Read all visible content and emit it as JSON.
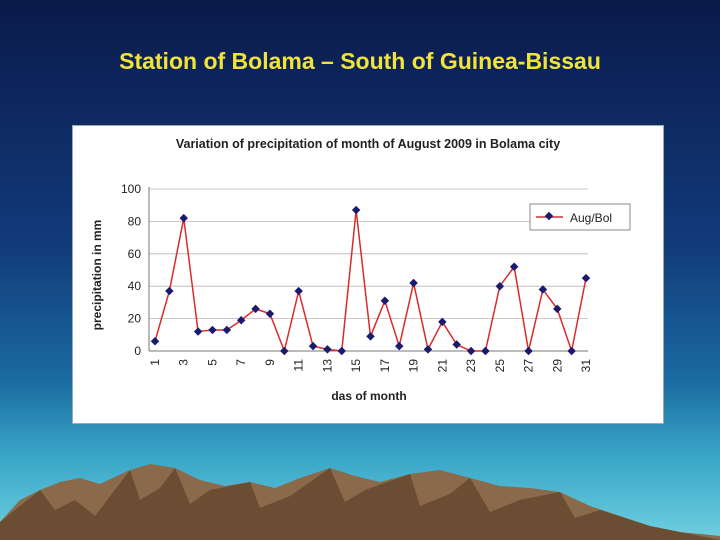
{
  "slide": {
    "title": "Station of Bolama – South of Guinea-Bissau"
  },
  "colors": {
    "title": "#f2e33a",
    "line": "#d92b2b",
    "marker": "#1a1a6e"
  },
  "chart_data": {
    "type": "line",
    "title": "Variation of precipitation of month of August 2009 in Bolama city",
    "xlabel": "das of month",
    "ylabel": "precipitation in mm",
    "ylim": [
      0,
      100
    ],
    "yticks": [
      "0",
      "20",
      "40",
      "60",
      "80",
      "100"
    ],
    "legend_position": "right",
    "categories": [
      "1",
      "2",
      "3",
      "4",
      "5",
      "6",
      "7",
      "8",
      "9",
      "10",
      "11",
      "12",
      "13",
      "14",
      "15",
      "16",
      "17",
      "18",
      "19",
      "20",
      "21",
      "22",
      "23",
      "24",
      "25",
      "26",
      "27",
      "28",
      "29",
      "30",
      "31"
    ],
    "xtick_labels": [
      "1",
      "3",
      "5",
      "7",
      "9",
      "11",
      "13",
      "15",
      "17",
      "19",
      "21",
      "23",
      "25",
      "27",
      "29",
      "31"
    ],
    "series": [
      {
        "name": "Aug/Bol",
        "values": [
          6,
          37,
          82,
          12,
          13,
          13,
          19,
          26,
          23,
          0,
          37,
          3,
          1,
          0,
          87,
          9,
          31,
          3,
          42,
          1,
          18,
          4,
          0,
          0,
          40,
          52,
          0,
          38,
          26,
          0,
          45
        ]
      }
    ]
  }
}
